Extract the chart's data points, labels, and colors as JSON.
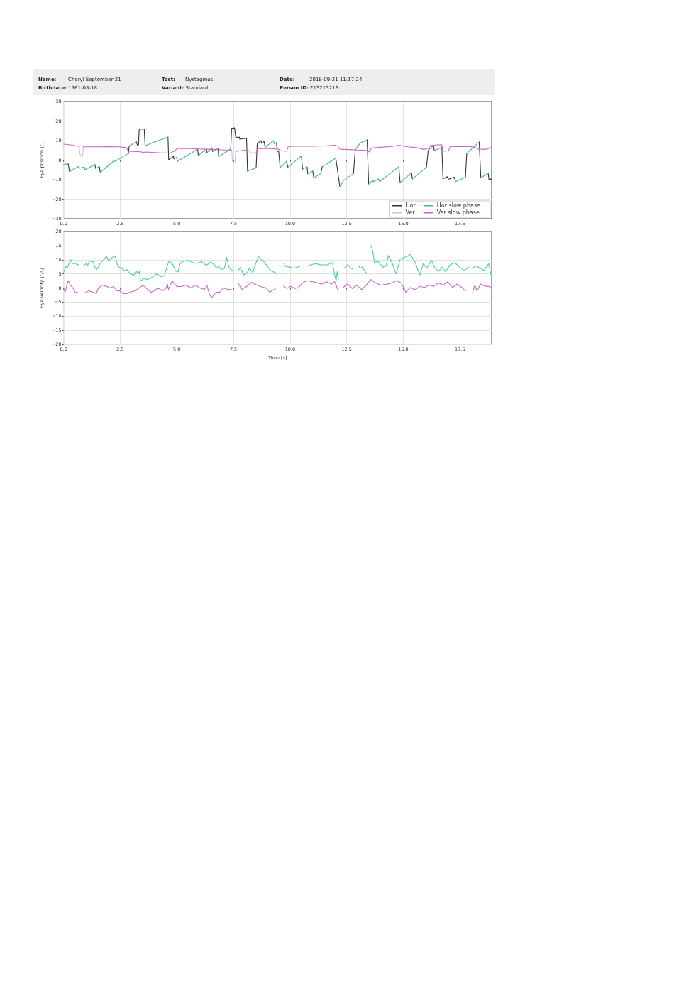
{
  "chart_data": [
    {
      "type": "other",
      "annotations": [
        "Name:",
        "Cheryl September 21",
        "Test:",
        "Nystagmus",
        "Date:",
        "2018-09-21 11:17:24",
        "Birthdate:",
        "1961-08-18",
        "Variant:",
        "Standard",
        "Person ID:",
        "213213213"
      ]
    },
    {
      "type": "line",
      "ylabel": "Eye position [°]",
      "xlim": [
        0,
        18.9
      ],
      "xticks": [
        {
          "value": 0,
          "label": "0.0"
        },
        2.5,
        {
          "value": 5,
          "label": "5.0"
        },
        7.5,
        {
          "value": 10,
          "label": "10.0"
        },
        12.5,
        {
          "value": 15,
          "label": "15.0"
        },
        17.5
      ],
      "ylim": [
        -30,
        30
      ],
      "yticks": [
        {
          "value": -30,
          "label": "−30"
        },
        {
          "value": -20,
          "label": "−20"
        },
        {
          "value": -10,
          "label": "−10"
        },
        0,
        10,
        20,
        30
      ],
      "grid": true,
      "legend": "bottom right",
      "marker": "none",
      "line_style": "solid",
      "series": [
        {
          "name": "Hor",
          "color": "#333333",
          "x": [
            0.2,
            0.26,
            0.4,
            1.38,
            1.42,
            1.5,
            1.58,
            1.62,
            2.0,
            2.86,
            2.9,
            3.0,
            3.22,
            3.26,
            3.31,
            3.34,
            3.56,
            3.6,
            4.0,
            4.61,
            4.64,
            4.85,
            4.87,
            5.0,
            5.03,
            5.5,
            5.92,
            5.95,
            6.1,
            6.3,
            6.33,
            6.4,
            6.55,
            6.58,
            6.7,
            6.82,
            6.85,
            7.0,
            7.38,
            7.42,
            7.55,
            7.6,
            7.76,
            7.78,
            8.08,
            8.12,
            8.3,
            8.5,
            8.55,
            8.72,
            8.74,
            8.85,
            8.9,
            9.0,
            9.4,
            9.43,
            9.5,
            9.56,
            9.7,
            9.85,
            9.9,
            10.2,
            10.5,
            10.55,
            10.6,
            10.75,
            10.78,
            10.9,
            11.0,
            11.05,
            11.2,
            11.36,
            11.42,
            11.7,
            12.02,
            12.2,
            12.5,
            12.8,
            12.88,
            13.0,
            13.4,
            13.47,
            13.55,
            14.8,
            14.86,
            15.0,
            15.36,
            15.4,
            15.7,
            16.02,
            16.1,
            16.2,
            16.33,
            16.37,
            16.5,
            16.7,
            16.75,
            16.95,
            16.98,
            17.25,
            17.3,
            17.5,
            17.74,
            17.8,
            18.0,
            18.35,
            18.42,
            18.6,
            18.75,
            18.78,
            18.9
          ],
          "values": [
            -1.8,
            -5.8,
            null,
            -2.2,
            -4.3,
            null,
            -3.4,
            -6.2,
            null,
            3.4,
            7.3,
            null,
            9.5,
            7.6,
            7.9,
            15.8,
            16.0,
            7.4,
            null,
            11.8,
            0.2,
            2.0,
            0.6,
            1.5,
            -0.5,
            null,
            5.7,
            2.4,
            null,
            5.8,
            3.8,
            null,
            6.3,
            4.4,
            null,
            6.0,
            1.8,
            null,
            5.8,
            16.3,
            16.5,
            11.6,
            11.8,
            10.7,
            11.2,
            -5.6,
            null,
            -4.0,
            8.4,
            10.0,
            8.6,
            9.6,
            6.6,
            null,
            9.0,
            4.8,
            4.2,
            -3.7,
            null,
            -0.6,
            -3.7,
            null,
            2.2,
            -4.6,
            null,
            -3.5,
            -7.0,
            null,
            -5.6,
            -9.2,
            null,
            -6.7,
            -3.4,
            null,
            1.0,
            -13.7,
            null,
            -6.7,
            5.5,
            null,
            10.4,
            -12.2,
            null,
            -3.4,
            -11.6,
            null,
            -6.4,
            -9.6,
            null,
            -3.7,
            5.0,
            null,
            7.6,
            4.8,
            null,
            6.7,
            -9.5,
            -8.5,
            -9.8,
            -8.7,
            -11.0,
            null,
            -8.8,
            3.4,
            null,
            9.3,
            -9.0,
            null,
            -6.8,
            -10.0,
            -9.6
          ]
        },
        {
          "name": "Ver",
          "color": "#c8c8c8",
          "x": [
            0.69,
            0.72,
            0.76,
            0.84,
            0.87,
            1.5,
            7.42,
            7.46,
            7.5,
            7.57,
            7.6
          ],
          "values": [
            6.9,
            3.5,
            2.0,
            2.0,
            6.8,
            null,
            5.0,
            -0.5,
            -1.5,
            -1.3,
            4.5
          ]
        },
        {
          "name": "Hor slow phase",
          "color": "#3cb585",
          "x": [
            0,
            0.2,
            0.23,
            0.26,
            0.65,
            0.68,
            0.92,
            0.95,
            1.38,
            1.4,
            1.42,
            1.58,
            1.6,
            1.62,
            2.26,
            2.28,
            2.86,
            2.88,
            2.9,
            3.22,
            3.24,
            3.6,
            4.1,
            4.61,
            4.62,
            5.03,
            5.5,
            5.92,
            5.93,
            5.95,
            6.3,
            6.31,
            6.33,
            6.55,
            6.56,
            6.58,
            6.82,
            6.83,
            6.85,
            7.38,
            7.5,
            8.12,
            8.5,
            8.52,
            8.9,
            9.27,
            9.3,
            9.4,
            9.42,
            9.56,
            9.85,
            9.87,
            9.9,
            10.5,
            10.52,
            10.55,
            10.75,
            10.76,
            10.78,
            11.0,
            11.02,
            11.05,
            11.36,
            11.4,
            11.42,
            12.02,
            12.1,
            12.2,
            12.35,
            12.8,
            12.84,
            12.88,
            13.1,
            13.4,
            13.44,
            13.47,
            13.65,
            13.68,
            13.9,
            13.95,
            14.8,
            14.83,
            14.86,
            15.36,
            15.38,
            15.4,
            16.02,
            16.06,
            16.1,
            16.33,
            16.35,
            16.37,
            16.7,
            16.72,
            17.3,
            17.74,
            17.77,
            17.8,
            18.35,
            18.38,
            18.42,
            18.75
          ],
          "values": [
            -2.4,
            -1.8,
            null,
            -5.8,
            -3.3,
            -4.2,
            -3.6,
            -5.0,
            -2.2,
            null,
            -4.3,
            -3.4,
            null,
            -6.2,
            0.0,
            -0.6,
            3.4,
            null,
            7.3,
            9.5,
            null,
            7.4,
            9.6,
            11.8,
            null,
            -0.5,
            2.6,
            5.7,
            null,
            2.4,
            5.8,
            null,
            3.8,
            6.3,
            null,
            4.4,
            6.0,
            null,
            1.8,
            5.8,
            null,
            -5.6,
            -4.0,
            null,
            6.6,
            10.0,
            8.4,
            9.0,
            null,
            -3.7,
            -0.6,
            null,
            -3.7,
            2.2,
            null,
            -4.6,
            -3.5,
            null,
            -7.0,
            -5.6,
            null,
            -9.2,
            -6.7,
            null,
            -3.4,
            1.0,
            null,
            -13.7,
            -10.6,
            -6.7,
            null,
            5.5,
            8.8,
            10.4,
            null,
            -12.2,
            -10.2,
            -11.0,
            -9.6,
            -11.0,
            -3.4,
            null,
            -11.6,
            -6.4,
            null,
            -9.6,
            -3.7,
            null,
            5.0,
            7.6,
            null,
            4.8,
            6.7,
            null,
            -11.0,
            -8.8,
            null,
            3.4,
            9.3,
            null,
            -9.0,
            -6.8
          ]
        },
        {
          "name": "Ver slow phase",
          "color": "#cc66cc",
          "x": [
            0,
            0.3,
            0.6,
            0.69,
            0.78,
            0.87,
            1.5,
            2.0,
            2.5,
            2.78,
            2.85,
            3.2,
            3.42,
            3.5,
            3.6,
            4.2,
            4.7,
            4.9,
            5.0,
            5.5,
            6.0,
            6.5,
            7.0,
            7.42,
            7.5,
            7.6,
            8.0,
            8.2,
            8.25,
            8.5,
            8.55,
            9.0,
            9.5,
            9.55,
            9.85,
            9.92,
            10.5,
            11.0,
            11.5,
            12.0,
            12.1,
            12.2,
            12.6,
            13.0,
            13.4,
            13.5,
            13.6,
            14.0,
            14.5,
            14.8,
            15.2,
            15.6,
            15.9,
            16.1,
            16.2,
            16.5,
            16.7,
            16.75,
            17.0,
            17.05,
            17.5,
            18.0,
            18.2,
            18.3,
            18.7,
            18.9
          ],
          "values": [
            8.2,
            7.8,
            7.2,
            6.9,
            null,
            6.8,
            6.8,
            6.9,
            6.8,
            6.4,
            4.6,
            4.4,
            4.3,
            3.8,
            4.2,
            3.8,
            3.6,
            4.6,
            5.9,
            5.9,
            5.7,
            5.5,
            5.3,
            5.0,
            null,
            4.5,
            5.1,
            4.8,
            3.8,
            3.6,
            5.8,
            6.0,
            5.6,
            4.9,
            4.6,
            7.0,
            7.2,
            7.1,
            7.3,
            7.6,
            7.2,
            5.6,
            5.4,
            5.2,
            5.0,
            4.2,
            6.3,
            6.6,
            7.0,
            7.6,
            6.8,
            6.4,
            5.5,
            6.0,
            7.5,
            7.8,
            7.9,
            4.6,
            4.8,
            6.8,
            7.0,
            6.9,
            6.4,
            5.6,
            5.6,
            6.6
          ]
        }
      ]
    },
    {
      "type": "line",
      "xlabel": "Time [s]",
      "ylabel": "Eye velocity [°/s]",
      "xlim": [
        0,
        18.9
      ],
      "xticks": [
        {
          "value": 0,
          "label": "0.0"
        },
        2.5,
        {
          "value": 5,
          "label": "5.0"
        },
        7.5,
        {
          "value": 10,
          "label": "10.0"
        },
        12.5,
        {
          "value": 15,
          "label": "15.0"
        },
        17.5
      ],
      "ylim": [
        -20,
        20
      ],
      "yticks": [
        {
          "value": -20,
          "label": "−20"
        },
        {
          "value": -15,
          "label": "−15"
        },
        {
          "value": -10,
          "label": "−10"
        },
        {
          "value": -5,
          "label": "−5"
        },
        0,
        5,
        10,
        15,
        20
      ],
      "grid": true,
      "marker": "none",
      "line_style": "solid",
      "series": [
        {
          "color": "#4ccf95",
          "x": [
            0.0,
            0.1,
            0.16,
            0.31,
            0.38,
            0.46,
            0.52,
            0.57,
            0.67,
            0.8,
            0.93,
            1.0,
            1.05,
            1.15,
            1.3,
            1.4,
            1.47,
            1.6,
            1.8,
            1.9,
            1.98,
            2.1,
            2.27,
            2.4,
            2.55,
            2.7,
            2.8,
            2.93,
            3.1,
            3.2,
            3.28,
            3.34,
            3.4,
            3.55,
            3.7,
            3.9,
            4.1,
            4.3,
            4.45,
            4.55,
            4.65,
            4.8,
            4.95,
            5.05,
            5.15,
            5.3,
            5.5,
            5.7,
            5.9,
            6.1,
            6.3,
            6.5,
            6.65,
            6.75,
            6.85,
            6.95,
            7.1,
            7.2,
            7.3,
            7.4,
            7.5,
            7.6,
            7.7,
            7.8,
            7.95,
            8.1,
            8.2,
            8.35,
            8.6,
            8.75,
            8.85,
            9.0,
            9.15,
            9.25,
            9.4,
            9.55,
            9.71,
            9.8,
            9.97,
            10.17,
            10.48,
            10.79,
            11.1,
            11.4,
            11.65,
            11.87,
            11.97,
            12.03,
            12.08,
            12.13,
            12.25,
            12.4,
            12.55,
            12.65,
            12.78,
            12.9,
            13.0,
            13.1,
            13.2,
            13.3,
            13.38,
            13.47,
            13.55,
            13.63,
            13.73,
            13.88,
            14.09,
            14.24,
            14.34,
            14.5,
            14.68,
            14.86,
            15.11,
            15.32,
            15.52,
            15.73,
            15.88,
            16.04,
            16.24,
            16.4,
            16.55,
            16.71,
            16.86,
            17.07,
            17.27,
            17.48,
            17.69,
            17.89,
            17.97,
            18.05,
            18.2,
            18.41,
            18.56,
            18.77,
            18.87
          ],
          "values": [
            5.5,
            7.6,
            7.2,
            10.0,
            8.8,
            8.4,
            9.0,
            8.3,
            8.2,
            null,
            8.2,
            8.6,
            7.8,
            9.5,
            9.3,
            7.0,
            6.6,
            8.5,
            10.3,
            11.3,
            9.6,
            10.5,
            11.4,
            7.6,
            7.0,
            6.1,
            6.5,
            5.1,
            4.5,
            6.0,
            5.0,
            6.0,
            2.5,
            3.4,
            3.0,
            3.8,
            5.0,
            4.0,
            4.3,
            7.0,
            9.6,
            8.6,
            6.0,
            5.7,
            8.8,
            9.5,
            9.8,
            9.0,
            8.7,
            9.3,
            8.0,
            9.2,
            8.3,
            7.0,
            8.0,
            6.5,
            7.0,
            10.8,
            7.2,
            6.5,
            6.0,
            null,
            6.0,
            7.3,
            4.6,
            5.3,
            7.0,
            5.5,
            11.2,
            9.8,
            9.2,
            7.6,
            6.2,
            5.8,
            5.0,
            null,
            8.6,
            7.6,
            7.4,
            7.0,
            7.8,
            7.8,
            8.6,
            8.2,
            8.2,
            9.0,
            4.6,
            2.6,
            5.8,
            3.0,
            null,
            7.0,
            8.3,
            7.2,
            6.6,
            null,
            8.0,
            7.0,
            7.4,
            6.0,
            5.1,
            null,
            15.0,
            13.9,
            9.0,
            9.4,
            7.4,
            7.8,
            11.5,
            9.0,
            5.0,
            10.2,
            11.0,
            11.9,
            9.0,
            4.6,
            8.6,
            7.0,
            9.8,
            7.0,
            5.8,
            7.4,
            5.8,
            8.2,
            9.0,
            7.4,
            6.2,
            7.4,
            null,
            7.0,
            7.8,
            7.0,
            6.2,
            8.6,
            4.6
          ]
        },
        {
          "color": "#cc66cc",
          "x": [
            0.0,
            0.07,
            0.2,
            0.31,
            0.41,
            0.51,
            0.62,
            0.8,
            0.98,
            1.13,
            1.29,
            1.44,
            1.54,
            1.7,
            1.9,
            2.06,
            2.21,
            2.37,
            2.47,
            2.62,
            2.78,
            2.93,
            3.14,
            3.34,
            3.5,
            3.65,
            3.86,
            4.01,
            4.17,
            4.37,
            4.53,
            4.58,
            4.63,
            4.79,
            5.0,
            5.2,
            5.4,
            5.61,
            5.81,
            6.02,
            6.22,
            6.33,
            6.43,
            6.53,
            6.74,
            6.89,
            7.05,
            7.25,
            7.41,
            7.55,
            7.72,
            7.87,
            8.08,
            8.28,
            8.54,
            8.69,
            8.94,
            9.1,
            9.35,
            9.5,
            9.71,
            9.86,
            10.02,
            10.22,
            10.38,
            10.54,
            10.74,
            11.0,
            11.2,
            11.4,
            11.61,
            11.82,
            11.97,
            12.13,
            12.22,
            12.34,
            12.54,
            12.75,
            12.95,
            13.16,
            13.36,
            13.57,
            13.77,
            14.03,
            14.29,
            14.5,
            14.7,
            14.91,
            15.11,
            15.32,
            15.52,
            15.73,
            15.94,
            16.14,
            16.35,
            16.55,
            16.76,
            16.96,
            17.17,
            17.37,
            17.58,
            17.74,
            17.9,
            18.05,
            18.15,
            18.25,
            18.41,
            18.61,
            18.77,
            18.87
          ],
          "values": [
            0.0,
            -1.5,
            2.6,
            1.0,
            0.0,
            -1.5,
            -1.6,
            null,
            -1.5,
            -1.0,
            -1.5,
            -2.0,
            0.0,
            1.0,
            0.6,
            0.0,
            0.5,
            -1.0,
            -1.0,
            -2.0,
            -2.0,
            -1.5,
            -1.0,
            0.0,
            1.0,
            0.0,
            -1.5,
            -1.0,
            0.0,
            -1.0,
            0.0,
            1.5,
            -0.5,
            2.5,
            0.5,
            0.5,
            1.0,
            0.0,
            1.0,
            0.0,
            -0.5,
            1.0,
            -2.0,
            -3.5,
            -1.5,
            -1.5,
            0.0,
            -0.5,
            -0.5,
            null,
            1.5,
            -0.5,
            0.5,
            2.0,
            1.0,
            0.5,
            0.0,
            -1.5,
            -0.2,
            null,
            0.6,
            -0.2,
            0.6,
            -0.2,
            0.2,
            1.8,
            2.6,
            2.2,
            1.8,
            1.4,
            2.2,
            1.4,
            2.2,
            -1.0,
            null,
            0.2,
            1.4,
            -0.2,
            1.0,
            -0.6,
            1.0,
            3.0,
            1.8,
            1.0,
            1.4,
            1.8,
            2.6,
            1.8,
            -1.5,
            0.2,
            -0.6,
            0.6,
            0.2,
            1.0,
            0.6,
            1.8,
            1.0,
            2.2,
            0.2,
            1.4,
            0.2,
            -1.0,
            null,
            -1.9,
            1.0,
            -1.0,
            1.4,
            0.6,
            0.6,
            0.2
          ]
        }
      ]
    }
  ]
}
